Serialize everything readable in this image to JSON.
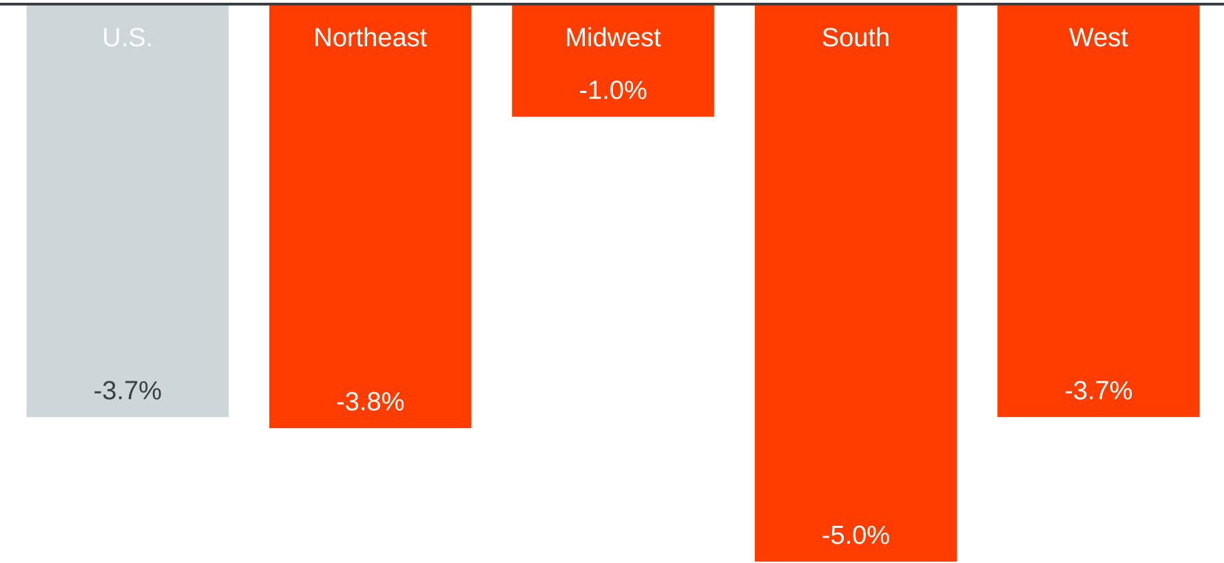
{
  "chart_data": {
    "type": "bar",
    "categories": [
      "U.S.",
      "Northeast",
      "Midwest",
      "South",
      "West"
    ],
    "values": [
      -3.7,
      -3.8,
      -1.0,
      -5.0,
      -3.7
    ],
    "value_labels": [
      "-3.7%",
      "-3.8%",
      "-1.0%",
      "-5.0%",
      "-3.7%"
    ],
    "colors": [
      "#cdd6d9",
      "#ff3d00",
      "#ff3d00",
      "#ff3d00",
      "#ff3d00"
    ],
    "label_colors": [
      "#3a3f44",
      "#ffffff",
      "#ffffff",
      "#ffffff",
      "#ffffff"
    ],
    "ylim": [
      -5,
      0
    ]
  }
}
